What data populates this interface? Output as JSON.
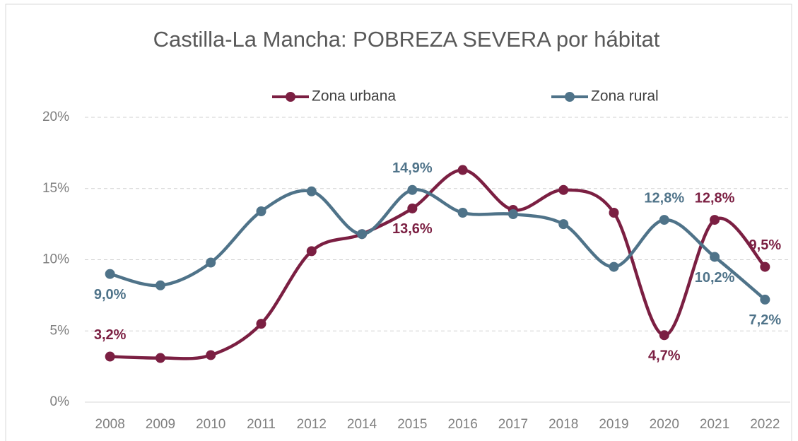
{
  "chart_data": {
    "type": "line",
    "title": "Castilla-La Mancha: POBREZA SEVERA por hábitat",
    "categories": [
      "2008",
      "2009",
      "2010",
      "2011",
      "2012",
      "2014",
      "2015",
      "2016",
      "2017",
      "2018",
      "2019",
      "2020",
      "2021",
      "2022"
    ],
    "series": [
      {
        "name": "Zona urbana",
        "color": "#7b1f42",
        "values": [
          3.2,
          3.1,
          3.3,
          5.5,
          10.6,
          11.8,
          13.6,
          16.3,
          13.5,
          14.9,
          13.3,
          4.7,
          12.8,
          9.5
        ],
        "value_labels": [
          "3,2%",
          null,
          null,
          null,
          null,
          null,
          "13,6%",
          null,
          null,
          null,
          null,
          "4,7%",
          "12,8%",
          "9,5%"
        ]
      },
      {
        "name": "Zona rural",
        "color": "#4f7389",
        "values": [
          9.0,
          8.2,
          9.8,
          13.4,
          14.8,
          11.8,
          14.9,
          13.3,
          13.2,
          12.5,
          9.5,
          12.8,
          10.2,
          7.2
        ],
        "value_labels": [
          "9,0%",
          null,
          null,
          null,
          null,
          null,
          "14,9%",
          null,
          null,
          null,
          null,
          "12,8%",
          "10,2%",
          "7,2%"
        ]
      }
    ],
    "ylim": [
      0,
      20
    ],
    "yticks": [
      {
        "value": 0,
        "label": "0%"
      },
      {
        "value": 5,
        "label": "5%"
      },
      {
        "value": 10,
        "label": "10%"
      },
      {
        "value": 15,
        "label": "15%"
      },
      {
        "value": 20,
        "label": "20%"
      }
    ],
    "grid": true,
    "legend": "top"
  }
}
